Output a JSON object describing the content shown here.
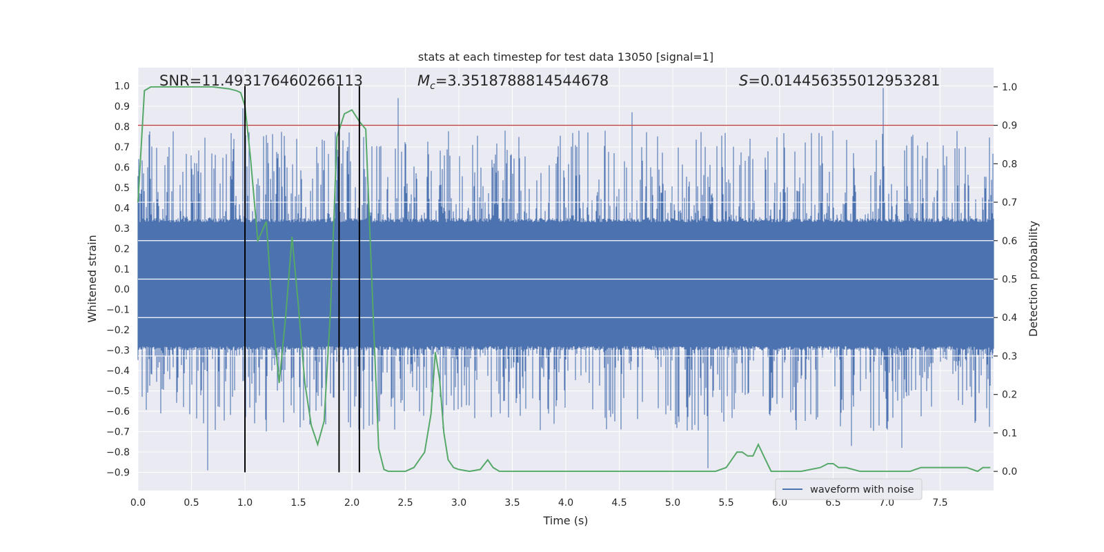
{
  "chart_data": {
    "type": "line",
    "title": "stats at each timestep for test data 13050 [signal=1]",
    "xlabel": "Time (s)",
    "ylabel_left": "Whitened strain",
    "ylabel_right": "Detection probability",
    "xlim": [
      0.0,
      8.0
    ],
    "ylim_left": [
      -0.99,
      1.09
    ],
    "ylim_right": [
      -0.05,
      1.05
    ],
    "x_ticks": [
      "0.0",
      "0.5",
      "1.0",
      "1.5",
      "2.0",
      "2.5",
      "3.0",
      "3.5",
      "4.0",
      "4.5",
      "5.0",
      "5.5",
      "6.0",
      "6.5",
      "7.0",
      "7.5"
    ],
    "y_left_ticks": [
      "1.0",
      "0.9",
      "0.8",
      "0.7",
      "0.6",
      "0.5",
      "0.4",
      "0.3",
      "0.2",
      "0.1",
      "0.0",
      "−0.1",
      "−0.2",
      "−0.3",
      "−0.4",
      "−0.5",
      "−0.6",
      "−0.7",
      "−0.8",
      "−0.9"
    ],
    "y_right_ticks": [
      "1.0",
      "0.9",
      "0.8",
      "0.7",
      "0.6",
      "0.5",
      "0.4",
      "0.3",
      "0.2",
      "0.1",
      "0.0"
    ],
    "annotations": {
      "snr": "SNR=11.493176460266113",
      "mc_symbol": "M",
      "mc_subscript": "c",
      "mc_value": "=3.3518788814544678",
      "s_symbol": "S",
      "s_value": "=0.014456355012953281"
    },
    "series": [
      {
        "name": "waveform with noise",
        "axis": "left",
        "color": "#4c72b0",
        "style": "dense noise trace",
        "core_band": [
          -0.28,
          0.33
        ],
        "spikes": [
          {
            "x": 0.65,
            "y": -0.89
          },
          {
            "x": 0.98,
            "y": 0.89
          },
          {
            "x": 1.67,
            "y": 0.7
          },
          {
            "x": 2.43,
            "y": 0.94
          },
          {
            "x": 4.62,
            "y": 0.87
          },
          {
            "x": 5.33,
            "y": -0.88
          },
          {
            "x": 6.97,
            "y": 0.99
          },
          {
            "x": 7.14,
            "y": -0.78
          },
          {
            "x": 6.67,
            "y": -0.77
          }
        ]
      },
      {
        "axis": "right",
        "color": "#55a868",
        "x": [
          0.0,
          0.06,
          0.12,
          0.3,
          0.5,
          0.7,
          0.85,
          0.92,
          0.96,
          1.0,
          1.05,
          1.12,
          1.2,
          1.26,
          1.32,
          1.38,
          1.44,
          1.5,
          1.56,
          1.62,
          1.68,
          1.74,
          1.8,
          1.86,
          1.93,
          2.0,
          2.07,
          2.13,
          2.2,
          2.25,
          2.3,
          2.34,
          2.4,
          2.5,
          2.58,
          2.63,
          2.68,
          2.74,
          2.78,
          2.82,
          2.86,
          2.9,
          2.95,
          3.0,
          3.1,
          3.2,
          3.27,
          3.32,
          3.38,
          3.45,
          3.6,
          3.8,
          4.2,
          4.6,
          4.8,
          5.0,
          5.2,
          5.4,
          5.5,
          5.55,
          5.6,
          5.65,
          5.7,
          5.75,
          5.8,
          5.85,
          5.92,
          6.0,
          6.2,
          6.38,
          6.45,
          6.5,
          6.55,
          6.62,
          6.75,
          6.9,
          7.1,
          7.22,
          7.32,
          7.4,
          7.5,
          7.62,
          7.75,
          7.85,
          7.9,
          7.97
        ],
        "y": [
          0.7,
          0.99,
          1.0,
          1.0,
          1.0,
          1.0,
          0.995,
          0.99,
          0.985,
          0.95,
          0.82,
          0.6,
          0.65,
          0.4,
          0.23,
          0.4,
          0.61,
          0.43,
          0.23,
          0.12,
          0.07,
          0.13,
          0.42,
          0.87,
          0.93,
          0.94,
          0.91,
          0.89,
          0.4,
          0.06,
          0.005,
          0.0,
          0.0,
          0.0,
          0.01,
          0.03,
          0.05,
          0.15,
          0.31,
          0.24,
          0.1,
          0.03,
          0.01,
          0.005,
          0.0,
          0.005,
          0.03,
          0.01,
          0.0,
          0.0,
          0.0,
          0.0,
          0.0,
          0.0,
          0.0,
          0.0,
          0.0,
          0.0,
          0.01,
          0.03,
          0.05,
          0.05,
          0.04,
          0.04,
          0.07,
          0.04,
          0.0,
          0.0,
          0.0,
          0.01,
          0.02,
          0.02,
          0.01,
          0.01,
          0.0,
          0.0,
          0.0,
          0.0,
          0.01,
          0.01,
          0.01,
          0.01,
          0.01,
          0.0,
          0.01,
          0.01
        ]
      }
    ],
    "threshold_line": {
      "axis": "right",
      "y": 0.9,
      "color": "#c44e52"
    },
    "vertical_lines": {
      "x": [
        1.0,
        1.88,
        2.07
      ],
      "color": "#000000"
    },
    "legend": {
      "placement": "lower-right",
      "entries": [
        "waveform with noise"
      ]
    },
    "grid": true,
    "style": {
      "plot_bg": "#eaeaf2",
      "grid_color": "#ffffff"
    }
  }
}
